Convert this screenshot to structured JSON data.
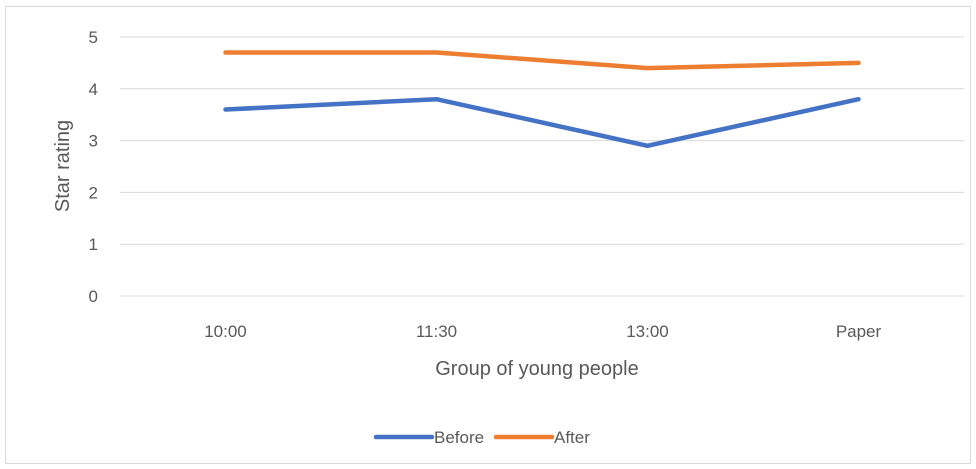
{
  "chart_data": {
    "type": "line",
    "categories": [
      "10:00",
      "11:30",
      "13:00",
      "Paper"
    ],
    "series": [
      {
        "name": "Before",
        "values": [
          3.6,
          3.8,
          2.9,
          3.8
        ],
        "color": "#4472C4"
      },
      {
        "name": "After",
        "values": [
          4.7,
          4.7,
          4.4,
          4.5
        ],
        "color": "#ED7D31"
      }
    ],
    "title": "",
    "xlabel": "Group of young people",
    "ylabel": "Star rating",
    "ylim": [
      0,
      5
    ],
    "yticks": [
      "0",
      "1",
      "2",
      "3",
      "4",
      "5"
    ],
    "grid": "horizontal",
    "legend": "bottom",
    "gridline_color": "#d9d9d9",
    "text_color": "#595959"
  }
}
